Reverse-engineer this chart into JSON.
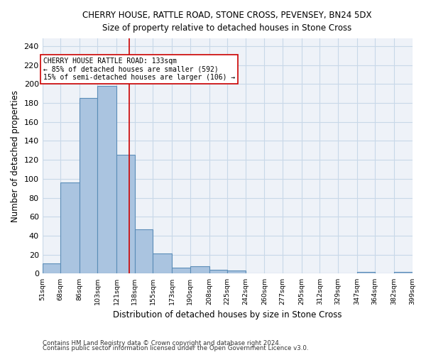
{
  "title": "CHERRY HOUSE, RATTLE ROAD, STONE CROSS, PEVENSEY, BN24 5DX",
  "subtitle": "Size of property relative to detached houses in Stone Cross",
  "xlabel": "Distribution of detached houses by size in Stone Cross",
  "ylabel": "Number of detached properties",
  "bin_edges": [
    51,
    68,
    86,
    103,
    121,
    138,
    155,
    173,
    190,
    208,
    225,
    242,
    260,
    277,
    295,
    312,
    329,
    347,
    364,
    382,
    399
  ],
  "bar_heights": [
    11,
    96,
    185,
    198,
    125,
    47,
    21,
    6,
    8,
    4,
    3,
    0,
    0,
    0,
    0,
    0,
    0,
    2,
    0,
    2
  ],
  "bar_color": "#aac4e0",
  "bar_edge_color": "#5b8db8",
  "grid_color": "#c8d8e8",
  "background_color": "#eef2f8",
  "ref_line_x": 133,
  "ref_line_color": "#cc0000",
  "annotation_text": "CHERRY HOUSE RATTLE ROAD: 133sqm\n← 85% of detached houses are smaller (592)\n15% of semi-detached houses are larger (106) →",
  "annotation_box_color": "#ffffff",
  "annotation_box_edge_color": "#cc0000",
  "ylim": [
    0,
    248
  ],
  "yticks": [
    0,
    20,
    40,
    60,
    80,
    100,
    120,
    140,
    160,
    180,
    200,
    220,
    240
  ],
  "footer_line1": "Contains HM Land Registry data © Crown copyright and database right 2024.",
  "footer_line2": "Contains public sector information licensed under the Open Government Licence v3.0."
}
